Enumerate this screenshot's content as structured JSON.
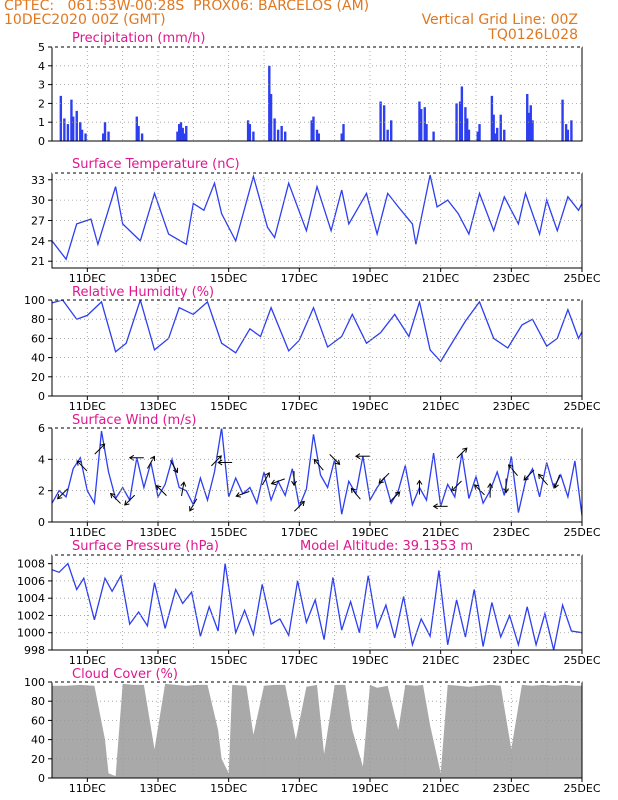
{
  "header": {
    "line1_left": "CPTEC:   061:53W-00:28S  PROX06: BARCELOS (AM)",
    "line2_left": "10DEC2020 00Z (GMT)",
    "line2_right": "Vertical Grid Line: 00Z",
    "line3_right": "TQ0126L028"
  },
  "colors": {
    "header": "#e07820",
    "title": "#e0178f",
    "line": "#2d3ff0",
    "bar": "#2d3ff0",
    "cloud": "#a9a9a9",
    "grid": "#999999"
  },
  "x_ticks": [
    "11DEC",
    "13DEC",
    "15DEC",
    "17DEC",
    "19DEC",
    "21DEC",
    "23DEC",
    "25DEC"
  ],
  "chart_data": [
    {
      "type": "bar",
      "title": "Precipitation (mm/h)",
      "x_range_days": [
        10,
        25
      ],
      "ylim": [
        0,
        5
      ],
      "yticks": [
        "0",
        "1",
        "2",
        "3",
        "4",
        "5"
      ],
      "series": [
        {
          "x_days": [
            10.25,
            10.35,
            10.45,
            10.55,
            10.6,
            10.7,
            10.8,
            10.85,
            10.95,
            11.45,
            11.5,
            11.6,
            12.4,
            12.45,
            12.55,
            13.55,
            13.6,
            13.65,
            13.7,
            13.75,
            13.8,
            15.55,
            15.6,
            15.7,
            16.15,
            16.2,
            16.3,
            16.4,
            16.5,
            16.6,
            17.35,
            17.4,
            17.5,
            17.55,
            18.2,
            18.25,
            19.3,
            19.4,
            19.5,
            19.6,
            20.4,
            20.45,
            20.55,
            20.6,
            20.8,
            21.45,
            21.55,
            21.6,
            21.7,
            21.75,
            21.8,
            22.05,
            22.1,
            22.45,
            22.5,
            22.55,
            22.6,
            22.7,
            22.8,
            23.45,
            23.5,
            23.55,
            23.6,
            24.45,
            24.55,
            24.6,
            24.7
          ],
          "values": [
            2.4,
            1.2,
            0.9,
            2.2,
            1.3,
            1.6,
            1.0,
            0.6,
            0.4,
            0.4,
            1.0,
            0.5,
            1.3,
            0.8,
            0.4,
            0.5,
            0.9,
            1.0,
            0.7,
            0.4,
            0.8,
            1.1,
            0.9,
            0.5,
            4.0,
            2.5,
            1.2,
            0.6,
            0.8,
            0.5,
            1.1,
            1.3,
            0.6,
            0.4,
            0.4,
            0.9,
            2.1,
            1.9,
            0.6,
            1.1,
            2.1,
            1.7,
            1.8,
            0.9,
            0.5,
            2.0,
            2.1,
            2.9,
            1.8,
            1.2,
            0.6,
            0.5,
            0.9,
            2.4,
            1.4,
            0.4,
            0.7,
            1.4,
            0.6,
            2.5,
            1.5,
            1.9,
            1.1,
            2.2,
            0.9,
            0.6,
            1.1
          ]
        }
      ]
    },
    {
      "type": "line",
      "title": "Surface Temperature (nC)",
      "x_range_days": [
        10,
        25
      ],
      "ylim": [
        20,
        34
      ],
      "yticks": [
        "21",
        "24",
        "27",
        "30",
        "33"
      ],
      "x_tick_days": [
        11,
        13,
        15,
        17,
        19,
        21,
        23,
        25
      ],
      "series": [
        {
          "x_days": [
            10.0,
            10.4,
            10.7,
            11.1,
            11.3,
            11.8,
            12.0,
            12.5,
            12.9,
            13.3,
            13.8,
            14.0,
            14.3,
            14.6,
            14.8,
            15.2,
            15.7,
            16.1,
            16.3,
            16.7,
            17.2,
            17.5,
            17.9,
            18.2,
            18.4,
            18.9,
            19.2,
            19.5,
            19.8,
            20.2,
            20.3,
            20.7,
            20.9,
            21.2,
            21.5,
            21.8,
            22.1,
            22.5,
            22.8,
            23.2,
            23.4,
            23.8,
            24.0,
            24.3,
            24.6,
            24.9,
            25.0
          ],
          "values": [
            24,
            21.3,
            26.5,
            27.2,
            23.5,
            32,
            26.5,
            24,
            31,
            25,
            23.5,
            29.5,
            28.5,
            32.5,
            28,
            24,
            33.5,
            26,
            24.5,
            32.5,
            25.5,
            32,
            25.5,
            31.5,
            26.5,
            31,
            25,
            31,
            29,
            26.5,
            23.5,
            33.7,
            29,
            30,
            28,
            25,
            31,
            25.5,
            30.5,
            26.5,
            31,
            25,
            30,
            25.5,
            30.5,
            28.5,
            29.5
          ]
        }
      ]
    },
    {
      "type": "line",
      "title": "Relative Humidity (%)",
      "x_range_days": [
        10,
        25
      ],
      "ylim": [
        0,
        100
      ],
      "yticks": [
        "0",
        "20",
        "40",
        "60",
        "80",
        "100"
      ],
      "x_tick_days": [
        11,
        13,
        15,
        17,
        19,
        21,
        23,
        25
      ],
      "series": [
        {
          "x_days": [
            10.0,
            10.3,
            10.7,
            11.0,
            11.4,
            11.8,
            12.1,
            12.5,
            12.9,
            13.3,
            13.6,
            14.0,
            14.4,
            14.8,
            15.2,
            15.6,
            15.9,
            16.2,
            16.7,
            17.0,
            17.4,
            17.8,
            18.2,
            18.5,
            18.9,
            19.3,
            19.7,
            20.1,
            20.4,
            20.7,
            21.0,
            21.4,
            21.7,
            22.1,
            22.5,
            22.9,
            23.3,
            23.6,
            24.0,
            24.3,
            24.6,
            24.9,
            25.0
          ],
          "values": [
            97,
            100,
            80,
            84,
            98,
            46,
            55,
            100,
            48,
            60,
            92,
            85,
            98,
            55,
            45,
            70,
            62,
            92,
            47,
            58,
            92,
            51,
            62,
            85,
            55,
            66,
            85,
            62,
            98,
            48,
            36,
            60,
            78,
            98,
            60,
            50,
            74,
            80,
            52,
            60,
            90,
            60,
            67
          ]
        }
      ]
    },
    {
      "type": "line",
      "title": "Surface Wind (m/s)",
      "x_range_days": [
        10,
        25
      ],
      "ylim": [
        0,
        6
      ],
      "yticks": [
        "0",
        "2",
        "4",
        "6"
      ],
      "x_tick_days": [
        11,
        13,
        15,
        17,
        19,
        21,
        23,
        25
      ],
      "series": [
        {
          "x_days": [
            10.0,
            10.2,
            10.4,
            10.6,
            10.8,
            11.0,
            11.2,
            11.4,
            11.6,
            11.8,
            12.0,
            12.2,
            12.4,
            12.6,
            12.8,
            13.0,
            13.2,
            13.4,
            13.6,
            13.8,
            14.0,
            14.2,
            14.4,
            14.6,
            14.8,
            15.0,
            15.2,
            15.4,
            15.6,
            15.8,
            16.0,
            16.2,
            16.4,
            16.6,
            16.8,
            17.0,
            17.2,
            17.4,
            17.6,
            17.8,
            18.0,
            18.2,
            18.4,
            18.6,
            18.8,
            19.0,
            19.2,
            19.4,
            19.6,
            19.8,
            20.0,
            20.2,
            20.4,
            20.6,
            20.8,
            21.0,
            21.2,
            21.4,
            21.6,
            21.8,
            22.0,
            22.2,
            22.4,
            22.6,
            22.8,
            23.0,
            23.2,
            23.4,
            23.6,
            23.8,
            24.0,
            24.2,
            24.4,
            24.6,
            24.8,
            25.0
          ],
          "values": [
            1.2,
            2.0,
            1.6,
            3.4,
            4.1,
            2.0,
            1.2,
            5.8,
            3.2,
            1.5,
            2.2,
            1.4,
            4.1,
            2.2,
            3.8,
            1.6,
            2.4,
            4.0,
            2.2,
            2.0,
            1.1,
            2.8,
            1.4,
            3.2,
            6.0,
            1.6,
            2.8,
            1.8,
            2.2,
            1.2,
            3.2,
            1.4,
            2.6,
            1.7,
            3.4,
            1.0,
            2.1,
            5.6,
            3.0,
            2.2,
            4.0,
            0.5,
            2.6,
            1.8,
            4.2,
            1.4,
            2.2,
            2.8,
            1.2,
            2.0,
            3.6,
            1.1,
            2.2,
            1.4,
            4.4,
            1.0,
            2.4,
            1.6,
            4.4,
            1.5,
            2.9,
            1.2,
            2.0,
            3.2,
            1.7,
            4.2,
            0.6,
            2.6,
            3.4,
            1.6,
            3.8,
            2.2,
            3.0,
            1.6,
            3.9,
            0.4
          ]
        }
      ],
      "wind_arrows_deg": [
        [
          10.3,
          225
        ],
        [
          10.85,
          135
        ],
        [
          11.35,
          45
        ],
        [
          11.8,
          135
        ],
        [
          12.2,
          225
        ],
        [
          12.4,
          180
        ],
        [
          12.8,
          60
        ],
        [
          13.1,
          135
        ],
        [
          13.45,
          300
        ],
        [
          13.7,
          80
        ],
        [
          14.0,
          240
        ],
        [
          14.65,
          45
        ],
        [
          14.9,
          180
        ],
        [
          15.4,
          200
        ],
        [
          16.05,
          60
        ],
        [
          16.4,
          200
        ],
        [
          16.85,
          270
        ],
        [
          17.0,
          45
        ],
        [
          17.55,
          130
        ],
        [
          18.0,
          315
        ],
        [
          18.6,
          130
        ],
        [
          18.8,
          180
        ],
        [
          19.4,
          225
        ],
        [
          19.7,
          45
        ],
        [
          20.4,
          90
        ],
        [
          21.0,
          180
        ],
        [
          21.45,
          225
        ],
        [
          21.6,
          45
        ],
        [
          22.1,
          135
        ],
        [
          22.4,
          90
        ],
        [
          22.85,
          270
        ],
        [
          23.05,
          130
        ],
        [
          23.5,
          225
        ],
        [
          23.9,
          130
        ],
        [
          24.3,
          250
        ]
      ]
    },
    {
      "type": "line",
      "title": "Surface Pressure (hPa)",
      "annotation": "Model Altitude: 39.1353 m",
      "x_range_days": [
        10,
        25
      ],
      "ylim": [
        998,
        1009
      ],
      "yticks": [
        "998",
        "1000",
        "1002",
        "1004",
        "1006",
        "1008"
      ],
      "x_tick_days": [
        11,
        13,
        15,
        17,
        19,
        21,
        23,
        25
      ],
      "series": [
        {
          "x_days": [
            10.0,
            10.2,
            10.45,
            10.7,
            10.9,
            11.2,
            11.5,
            11.7,
            11.95,
            12.2,
            12.45,
            12.7,
            12.9,
            13.2,
            13.5,
            13.7,
            13.95,
            14.2,
            14.45,
            14.7,
            14.9,
            15.2,
            15.45,
            15.7,
            15.95,
            16.2,
            16.45,
            16.7,
            16.95,
            17.2,
            17.45,
            17.7,
            17.95,
            18.2,
            18.45,
            18.7,
            18.95,
            19.2,
            19.45,
            19.7,
            19.95,
            20.2,
            20.45,
            20.7,
            20.95,
            21.2,
            21.45,
            21.7,
            21.95,
            22.2,
            22.45,
            22.7,
            22.95,
            23.2,
            23.45,
            23.7,
            23.95,
            24.2,
            24.45,
            24.7,
            25.0
          ],
          "values": [
            1007.3,
            1007.0,
            1008.0,
            1005.0,
            1006.3,
            1001.5,
            1006.3,
            1004.8,
            1006.6,
            1001.0,
            1002.4,
            1000.8,
            1005.8,
            1000.5,
            1005.0,
            1003.4,
            1004.7,
            999.6,
            1003.0,
            1000.2,
            1008.0,
            1000.0,
            1002.6,
            999.8,
            1005.6,
            1001.0,
            1001.6,
            999.7,
            1006.0,
            1001.2,
            1003.8,
            999.2,
            1006.4,
            1000.3,
            1003.6,
            1000.0,
            1006.6,
            1000.6,
            1003.2,
            999.4,
            1004.2,
            998.6,
            1001.6,
            999.6,
            1007.2,
            998.6,
            1003.8,
            999.5,
            1005.0,
            998.4,
            1003.5,
            999.5,
            1002.0,
            998.6,
            1003.0,
            998.6,
            1002.2,
            998.0,
            1003.2,
            1000.2,
            1000.0
          ]
        }
      ]
    },
    {
      "type": "area",
      "title": "Cloud Cover (%)",
      "x_range_days": [
        10,
        25
      ],
      "ylim": [
        0,
        100
      ],
      "yticks": [
        "0",
        "20",
        "40",
        "60",
        "80",
        "100"
      ],
      "x_tick_days": [
        11,
        13,
        15,
        17,
        19,
        21,
        23,
        25
      ],
      "series": [
        {
          "x_days": [
            10.0,
            10.4,
            10.8,
            11.2,
            11.5,
            11.6,
            11.8,
            12.0,
            12.3,
            12.6,
            12.9,
            13.2,
            13.5,
            13.8,
            14.1,
            14.4,
            14.7,
            14.8,
            15.0,
            15.1,
            15.5,
            15.7,
            16.0,
            16.3,
            16.6,
            16.9,
            17.2,
            17.5,
            17.7,
            18.0,
            18.3,
            18.5,
            18.8,
            19.0,
            19.2,
            19.5,
            19.8,
            20.0,
            20.3,
            20.5,
            20.7,
            21.0,
            21.2,
            21.5,
            21.8,
            22.1,
            22.4,
            22.7,
            23.0,
            23.3,
            23.6,
            23.9,
            24.2,
            24.5,
            24.8,
            25.0
          ],
          "values": [
            96,
            96,
            97,
            96,
            40,
            5,
            2,
            98,
            97,
            97,
            30,
            98,
            97,
            96,
            97,
            97,
            50,
            20,
            5,
            97,
            96,
            45,
            96,
            97,
            97,
            40,
            95,
            97,
            25,
            97,
            97,
            50,
            12,
            97,
            94,
            96,
            50,
            97,
            96,
            97,
            55,
            5,
            97,
            96,
            95,
            96,
            97,
            96,
            30,
            97,
            96,
            97,
            96,
            97,
            96,
            96
          ]
        }
      ]
    }
  ]
}
